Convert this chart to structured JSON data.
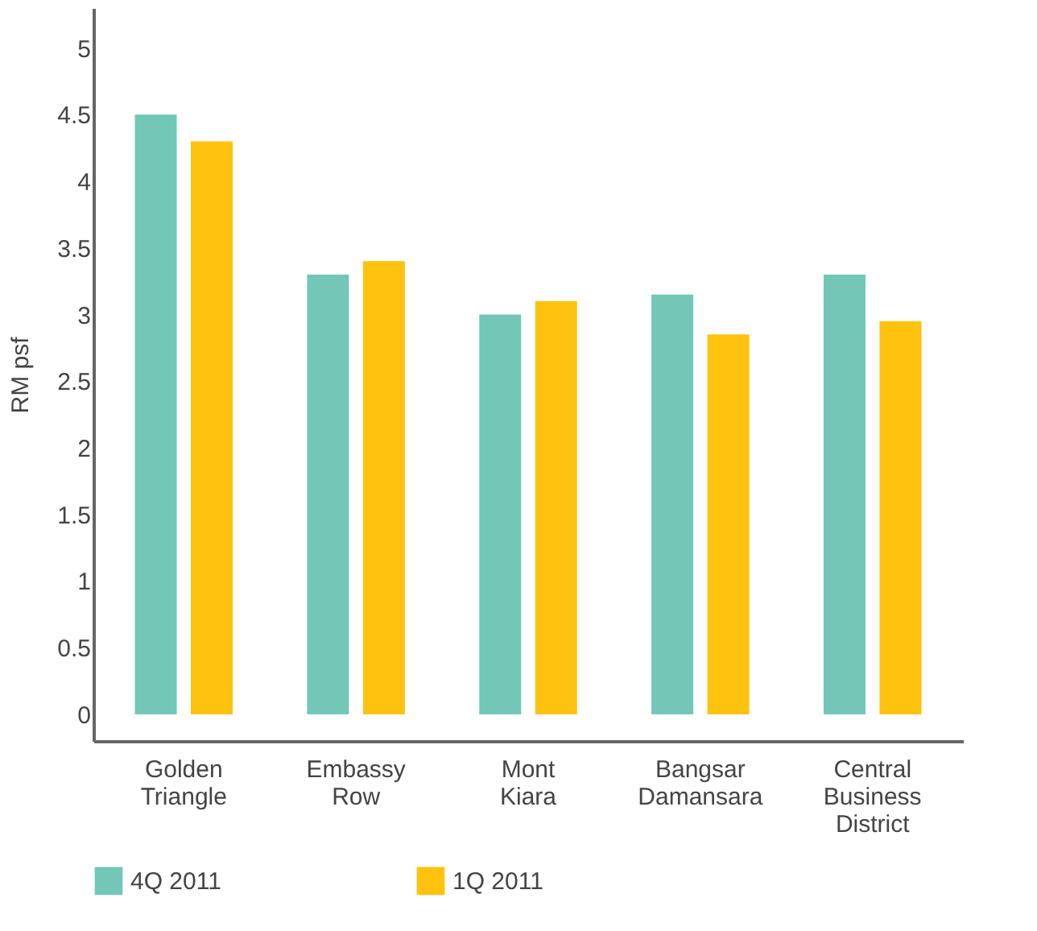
{
  "chart_data": {
    "type": "bar",
    "ylabel": "RM psf",
    "categories": [
      "Golden Triangle",
      "Embassy Row",
      "Mont Kiara",
      "Bangsar Damansara",
      "Central Business District"
    ],
    "series": [
      {
        "name": "4Q 2011",
        "color": "#72c7b6",
        "values": [
          4.5,
          3.3,
          3.0,
          3.15,
          3.3
        ]
      },
      {
        "name": "1Q 2011",
        "color": "#ffc20e",
        "values": [
          4.3,
          3.4,
          3.1,
          2.85,
          2.95
        ]
      }
    ],
    "ylim": [
      -0.2,
      5.3
    ],
    "yticks": [
      0,
      0.5,
      1,
      1.5,
      2,
      2.5,
      3,
      3.5,
      4,
      4.5,
      5
    ],
    "grid": false,
    "legend": "bottom"
  }
}
